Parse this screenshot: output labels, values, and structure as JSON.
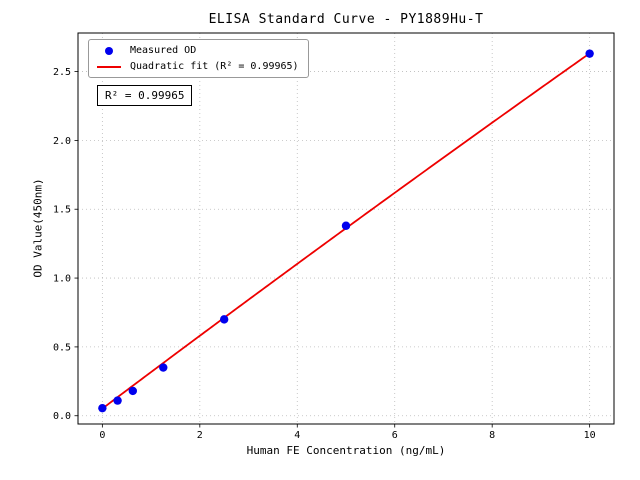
{
  "chart_data": {
    "type": "scatter",
    "title": "ELISA Standard Curve - PY1889Hu-T",
    "xlabel": "Human FE Concentration (ng/mL)",
    "ylabel": "OD Value(450nm)",
    "xlim": [
      -0.5,
      10.5
    ],
    "ylim": [
      -0.06,
      2.78
    ],
    "xticks": [
      0,
      2,
      4,
      6,
      8,
      10
    ],
    "yticks": [
      0.0,
      0.5,
      1.0,
      1.5,
      2.0,
      2.5
    ],
    "grid": true,
    "legend_position": "upper-left",
    "series": [
      {
        "name": "Measured OD",
        "type": "scatter",
        "color": "#0000ee",
        "x": [
          0,
          0.3125,
          0.625,
          1.25,
          2.5,
          5,
          10
        ],
        "y": [
          0.055,
          0.11,
          0.18,
          0.35,
          0.7,
          1.38,
          2.63
        ]
      },
      {
        "name": "Quadratic fit (R² = 0.99965)",
        "type": "line",
        "color": "#ee0000",
        "fit": {
          "a": -0.0008,
          "b": 0.266,
          "c": 0.052,
          "x_range": [
            0,
            10
          ]
        }
      }
    ],
    "annotation": "R² = 0.99965",
    "r_squared": 0.99965
  }
}
